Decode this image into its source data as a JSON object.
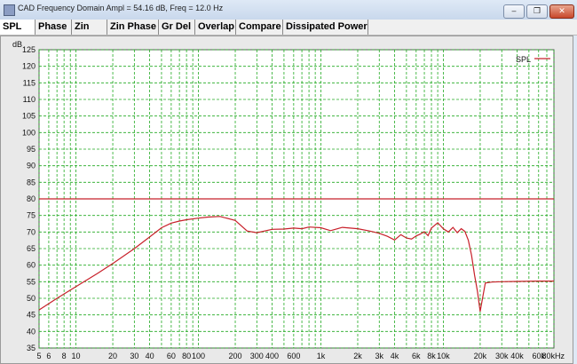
{
  "window": {
    "title": "CAD Frequency Domain   Ampl = 54.16 dB, Freq = 12.0 Hz",
    "minimize_icon": "minimize-icon",
    "restore_icon": "restore-icon",
    "close_icon": "close-icon"
  },
  "tabs": [
    {
      "label": "SPL"
    },
    {
      "label": "Phase"
    },
    {
      "label": "Zin"
    },
    {
      "label": "Zin Phase"
    },
    {
      "label": "Gr Del"
    },
    {
      "label": "Overlap"
    },
    {
      "label": "Compare"
    },
    {
      "label": "Dissipated Power"
    }
  ],
  "colors": {
    "grid": "#22aa22",
    "curve": "#c8202a",
    "plot_bg": "#ffffff"
  },
  "chart_data": {
    "type": "line",
    "ylabel": "dB",
    "xlabel": "Hz",
    "x_scale": "log",
    "ylim": [
      35,
      125
    ],
    "xlim": [
      5,
      80000
    ],
    "grid": true,
    "legend_position": "top-right",
    "y_ticks": [
      125,
      120,
      115,
      110,
      105,
      100,
      95,
      90,
      85,
      80,
      75,
      70,
      65,
      60,
      55,
      50,
      45,
      40,
      35
    ],
    "x_tick_labels": [
      {
        "label": "5",
        "value": 5
      },
      {
        "label": "6",
        "value": 6
      },
      {
        "label": "8",
        "value": 8
      },
      {
        "label": "10",
        "value": 10
      },
      {
        "label": "20",
        "value": 20
      },
      {
        "label": "30",
        "value": 30
      },
      {
        "label": "40",
        "value": 40
      },
      {
        "label": "60",
        "value": 60
      },
      {
        "label": "80",
        "value": 80
      },
      {
        "label": "100",
        "value": 100
      },
      {
        "label": "200",
        "value": 200
      },
      {
        "label": "300",
        "value": 300
      },
      {
        "label": "400",
        "value": 400
      },
      {
        "label": "600",
        "value": 600
      },
      {
        "label": "1k",
        "value": 1000
      },
      {
        "label": "2k",
        "value": 2000
      },
      {
        "label": "3k",
        "value": 3000
      },
      {
        "label": "4k",
        "value": 4000
      },
      {
        "label": "6k",
        "value": 6000
      },
      {
        "label": "8k",
        "value": 8000
      },
      {
        "label": "10k",
        "value": 10000
      },
      {
        "label": "20k",
        "value": 20000
      },
      {
        "label": "30k",
        "value": 30000
      },
      {
        "label": "40k",
        "value": 40000
      },
      {
        "label": "60k",
        "value": 60000
      },
      {
        "label": "80kHz",
        "value": 80000
      }
    ],
    "reference_line_y": 80,
    "series": [
      {
        "name": "SPL",
        "x": [
          5,
          7,
          10,
          15,
          20,
          30,
          40,
          50,
          60,
          70,
          80,
          100,
          120,
          150,
          200,
          250,
          300,
          400,
          500,
          600,
          700,
          800,
          1000,
          1200,
          1500,
          2000,
          2500,
          3000,
          3500,
          4000,
          4500,
          5000,
          5500,
          6000,
          6500,
          7000,
          7500,
          8000,
          9000,
          10000,
          11000,
          12000,
          13000,
          14000,
          15000,
          16000,
          17000,
          18000,
          19000,
          20000,
          22000,
          25000,
          30000,
          40000,
          60000,
          80000
        ],
        "y": [
          46.5,
          50,
          53.5,
          57.5,
          60.5,
          65,
          68.5,
          71.3,
          72.7,
          73.3,
          73.7,
          74.2,
          74.5,
          74.7,
          73.5,
          70.3,
          69.8,
          70.8,
          70.9,
          71.2,
          71.0,
          71.5,
          71.3,
          70.4,
          71.4,
          71.0,
          70.3,
          69.6,
          68.7,
          67.6,
          69.2,
          68.2,
          67.9,
          68.8,
          69.4,
          70.1,
          68.9,
          71.2,
          72.8,
          71.0,
          70.0,
          71.4,
          69.8,
          71.0,
          70.2,
          67.5,
          63.0,
          57.0,
          52.0,
          46.0,
          54.6,
          54.9,
          55.0,
          55.1,
          55.2,
          55.2
        ]
      }
    ]
  }
}
